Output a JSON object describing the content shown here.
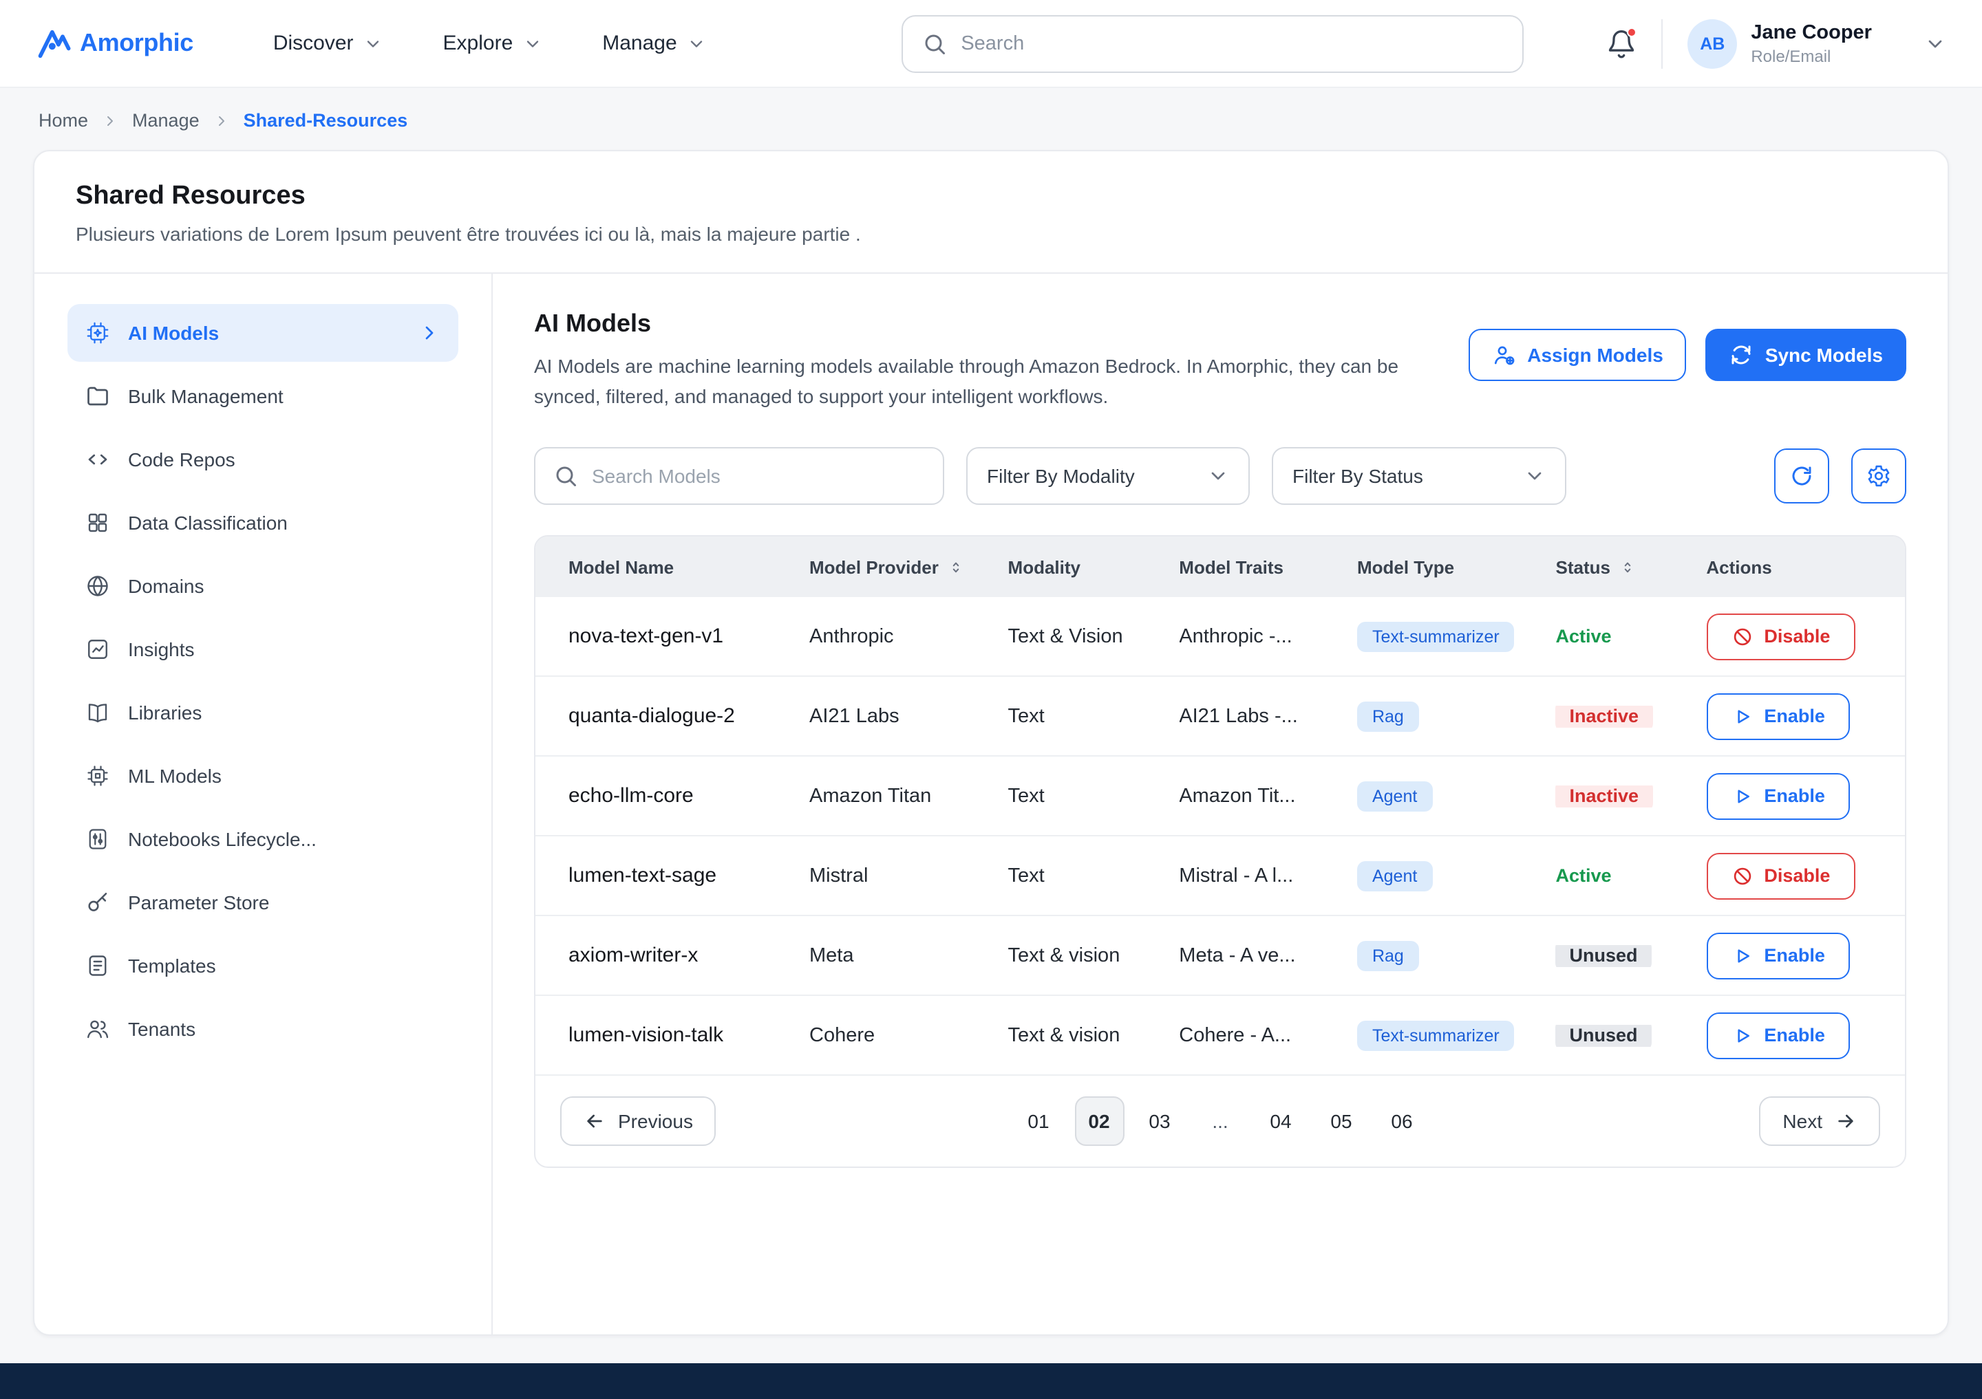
{
  "brand": {
    "name": "Amorphic"
  },
  "nav": {
    "items": [
      {
        "label": "Discover"
      },
      {
        "label": "Explore"
      },
      {
        "label": "Manage"
      }
    ],
    "search_placeholder": "Search"
  },
  "user": {
    "initials": "AB",
    "name": "Jane Cooper",
    "role": "Role/Email"
  },
  "breadcrumb": {
    "items": [
      "Home",
      "Manage",
      "Shared-Resources"
    ]
  },
  "page": {
    "title": "Shared Resources",
    "subtitle": "Plusieurs variations de Lorem Ipsum peuvent être trouvées ici ou là, mais la majeure partie ."
  },
  "sidebar": {
    "items": [
      {
        "label": "AI Models",
        "icon": "ai-models-icon",
        "active": true
      },
      {
        "label": "Bulk Management",
        "icon": "folder-icon",
        "active": false
      },
      {
        "label": "Code Repos",
        "icon": "code-icon",
        "active": false
      },
      {
        "label": "Data Classification",
        "icon": "grid-icon",
        "active": false
      },
      {
        "label": "Domains",
        "icon": "globe-icon",
        "active": false
      },
      {
        "label": "Insights",
        "icon": "insights-icon",
        "active": false
      },
      {
        "label": "Libraries",
        "icon": "book-icon",
        "active": false
      },
      {
        "label": "ML Models",
        "icon": "cpu-icon",
        "active": false
      },
      {
        "label": "Notebooks Lifecycle...",
        "icon": "sliders-icon",
        "active": false
      },
      {
        "label": "Parameter Store",
        "icon": "key-icon",
        "active": false
      },
      {
        "label": "Templates",
        "icon": "template-icon",
        "active": false
      },
      {
        "label": "Tenants",
        "icon": "users-icon",
        "active": false
      }
    ]
  },
  "content": {
    "title": "AI Models",
    "description": "AI Models are machine learning models available through Amazon Bedrock. In Amorphic, they can be synced, filtered, and managed to support your intelligent workflows.",
    "assign_button": "Assign Models",
    "sync_button": "Sync Models",
    "search_placeholder": "Search Models",
    "filters": [
      {
        "label": "Filter By Modality"
      },
      {
        "label": "Filter By Status"
      }
    ]
  },
  "table": {
    "headers": [
      {
        "label": "Model Name",
        "sortable": false
      },
      {
        "label": "Model Provider",
        "sortable": true
      },
      {
        "label": "Modality",
        "sortable": false
      },
      {
        "label": "Model Traits",
        "sortable": false
      },
      {
        "label": "Model Type",
        "sortable": false
      },
      {
        "label": "Status",
        "sortable": true
      },
      {
        "label": "Actions",
        "sortable": false
      }
    ],
    "rows": [
      {
        "name": "nova-text-gen-v1",
        "provider": "Anthropic",
        "modality": "Text & Vision",
        "traits": "Anthropic -...",
        "type": "Text-summarizer",
        "status": "Active",
        "action": "Disable"
      },
      {
        "name": "quanta-dialogue-2",
        "provider": "AI21 Labs",
        "modality": "Text",
        "traits": "AI21 Labs -...",
        "type": "Rag",
        "status": "Inactive",
        "action": "Enable"
      },
      {
        "name": "echo-llm-core",
        "provider": "Amazon Titan",
        "modality": "Text",
        "traits": "Amazon Tit...",
        "type": "Agent",
        "status": "Inactive",
        "action": "Enable"
      },
      {
        "name": "lumen-text-sage",
        "provider": "Mistral",
        "modality": "Text",
        "traits": "Mistral - A l...",
        "type": "Agent",
        "status": "Active",
        "action": "Disable"
      },
      {
        "name": "axiom-writer-x",
        "provider": "Meta",
        "modality": "Text & vision",
        "traits": "Meta - A ve...",
        "type": "Rag",
        "status": "Unused",
        "action": "Enable"
      },
      {
        "name": "lumen-vision-talk",
        "provider": "Cohere",
        "modality": "Text & vision",
        "traits": "Cohere - A...",
        "type": "Text-summarizer",
        "status": "Unused",
        "action": "Enable"
      }
    ]
  },
  "pagination": {
    "previous": "Previous",
    "next": "Next",
    "pages": [
      "01",
      "02",
      "03",
      "...",
      "04",
      "05",
      "06"
    ],
    "current": "02"
  },
  "colors": {
    "primary": "#2170f5",
    "active_green": "#17994e",
    "inactive_red": "#d32f2f",
    "footer_navy": "#0e2442"
  }
}
